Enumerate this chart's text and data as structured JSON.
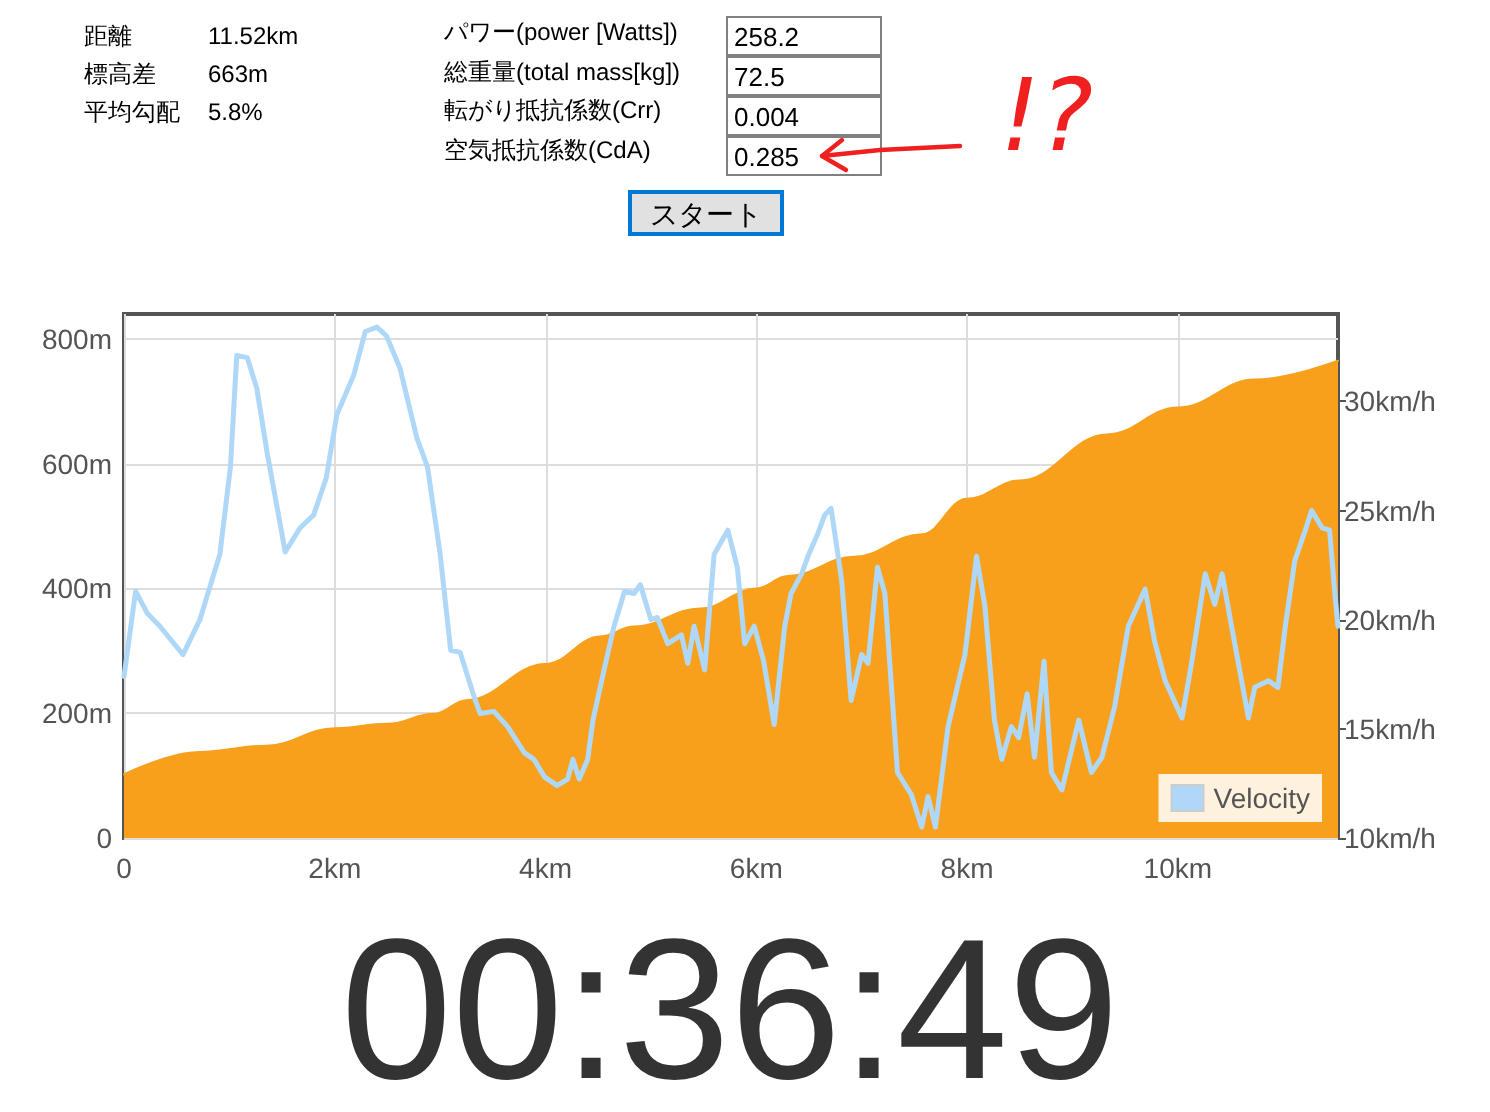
{
  "chart_data": {
    "type": "area",
    "annotations": [
      "距離",
      "11.52km",
      "標高差",
      "663m",
      "平均勾配",
      "5.8%",
      "パワー(power [Watts])",
      "258.2",
      "総重量(total mass[kg])",
      "72.5",
      "転がり抵抗係数(Crr)",
      "0.004",
      "空気抵抗係数(CdA)",
      "0.285",
      "スタート",
      "!?",
      "00:36:49"
    ],
    "xlim": [
      0,
      11.52
    ],
    "xticks": [
      0,
      {
        "value": 2,
        "label": "2km"
      },
      {
        "value": 4,
        "label": "4km"
      },
      {
        "value": 6,
        "label": "6km"
      },
      {
        "value": 8,
        "label": "8km"
      },
      {
        "value": 10,
        "label": "10km"
      }
    ],
    "ylim": [
      0,
      840
    ],
    "yticks": [
      0,
      {
        "value": 200,
        "label": "200m"
      },
      {
        "value": 400,
        "label": "400m"
      },
      {
        "value": 600,
        "label": "600m"
      },
      {
        "value": 800,
        "label": "800m"
      }
    ],
    "y2lim": [
      10,
      34
    ],
    "y2ticks": [
      {
        "value": 10,
        "label": "10km/h"
      },
      {
        "value": 15,
        "label": "15km/h"
      },
      {
        "value": 20,
        "label": "20km/h"
      },
      {
        "value": 25,
        "label": "25km/h"
      },
      {
        "value": 30,
        "label": "30km/h"
      }
    ],
    "grid": true,
    "legend": "bottom right",
    "marker": "none",
    "series": [
      {
        "color": "#f8a01c",
        "x": [
          0,
          0.72,
          1.35,
          2.0,
          2.5,
          2.94,
          3.25,
          4.0,
          4.52,
          4.84,
          5.47,
          6.0,
          6.3,
          6.93,
          7.57,
          8.0,
          8.5,
          9.33,
          10.0,
          10.73,
          11.52
        ],
        "values": [
          102,
          138,
          148,
          176,
          183,
          199,
          221,
          279,
          323,
          339,
          368,
          400,
          420,
          451,
          487,
          544,
          573,
          647,
          690,
          735,
          765
        ]
      },
      {
        "type": "line",
        "name": "Velocity",
        "color": "#afd8f8",
        "axis": "y2",
        "x": [
          0,
          0.11,
          0.22,
          0.34,
          0.56,
          0.72,
          0.91,
          1.01,
          1.07,
          1.17,
          1.26,
          1.36,
          1.53,
          1.67,
          1.8,
          1.92,
          2.02,
          2.18,
          2.29,
          2.4,
          2.49,
          2.62,
          2.78,
          2.88,
          3.0,
          3.1,
          3.19,
          3.32,
          3.38,
          3.51,
          3.64,
          3.8,
          3.89,
          3.99,
          4.11,
          4.21,
          4.26,
          4.32,
          4.4,
          4.45,
          4.56,
          4.65,
          4.75,
          4.84,
          4.9,
          5.0,
          5.06,
          5.16,
          5.29,
          5.35,
          5.41,
          5.51,
          5.6,
          5.73,
          5.82,
          5.89,
          5.98,
          6.07,
          6.17,
          6.27,
          6.33,
          6.43,
          6.49,
          6.58,
          6.65,
          6.71,
          6.81,
          6.9,
          7.0,
          7.06,
          7.15,
          7.22,
          7.34,
          7.47,
          7.57,
          7.63,
          7.7,
          7.82,
          7.98,
          8.09,
          8.17,
          8.26,
          8.33,
          8.42,
          8.49,
          8.57,
          8.64,
          8.73,
          8.8,
          8.9,
          9.06,
          9.18,
          9.28,
          9.4,
          9.53,
          9.69,
          9.78,
          9.88,
          10.04,
          10.13,
          10.26,
          10.35,
          10.42,
          10.51,
          10.67,
          10.73,
          10.86,
          10.95,
          11.02,
          11.11,
          11.21,
          11.27,
          11.37,
          11.44,
          11.49,
          11.52
        ],
        "values": [
          17.4,
          21.3,
          20.3,
          19.7,
          18.4,
          20.0,
          23.0,
          27.0,
          32.1,
          32.0,
          30.6,
          27.6,
          23.1,
          24.2,
          24.8,
          26.5,
          29.4,
          31.2,
          33.2,
          33.4,
          33.0,
          31.5,
          28.3,
          27.0,
          23.0,
          18.6,
          18.5,
          16.5,
          15.7,
          15.8,
          15.1,
          13.9,
          13.6,
          12.8,
          12.4,
          12.7,
          13.6,
          12.7,
          13.6,
          15.4,
          17.8,
          19.7,
          21.3,
          21.2,
          21.6,
          20.0,
          20.1,
          18.9,
          19.3,
          18.0,
          19.7,
          17.7,
          23.0,
          24.1,
          22.4,
          18.9,
          19.7,
          18.1,
          15.2,
          19.7,
          21.2,
          22.1,
          22.9,
          23.9,
          24.8,
          25.1,
          21.8,
          16.3,
          18.4,
          18.0,
          22.4,
          21.2,
          13.0,
          12.0,
          10.5,
          11.9,
          10.5,
          15.1,
          18.4,
          22.9,
          20.6,
          15.4,
          13.6,
          15.1,
          14.6,
          16.6,
          13.7,
          18.1,
          13.0,
          12.2,
          15.4,
          13.0,
          13.7,
          16.0,
          19.7,
          21.4,
          19.0,
          17.2,
          15.5,
          18.0,
          22.1,
          20.7,
          22.1,
          19.7,
          15.5,
          16.9,
          17.2,
          16.9,
          19.7,
          22.7,
          24.1,
          25.0,
          24.2,
          24.1,
          21.2,
          19.7
        ]
      }
    ]
  }
}
